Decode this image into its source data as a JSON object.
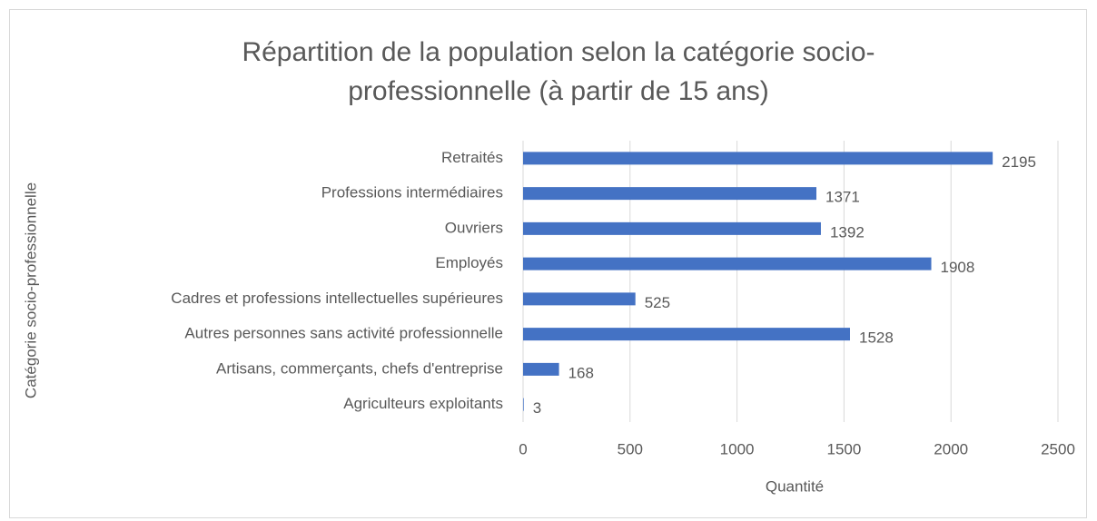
{
  "chart_data": {
    "type": "barh",
    "title": "Répartition de la population selon la catégorie socio-professionnelle (à partir de 15 ans)",
    "categories": [
      "Agriculteurs exploitants",
      "Artisans, commerçants, chefs d'entreprise",
      "Autres personnes sans activité professionnelle",
      "Cadres et professions intellectuelles supérieures",
      "Employés",
      "Ouvriers",
      "Professions intermédiaires",
      "Retraités"
    ],
    "values": [
      3,
      168,
      1528,
      525,
      1908,
      1392,
      1371,
      2195
    ],
    "color": "#4472c4",
    "xlabel": "Quantité",
    "ylabel": "Catégorie socio-professionnelle",
    "xlim": [
      0,
      2500
    ],
    "xticks": [
      0,
      500,
      1000,
      1500,
      2000,
      2500
    ],
    "grid": true
  }
}
